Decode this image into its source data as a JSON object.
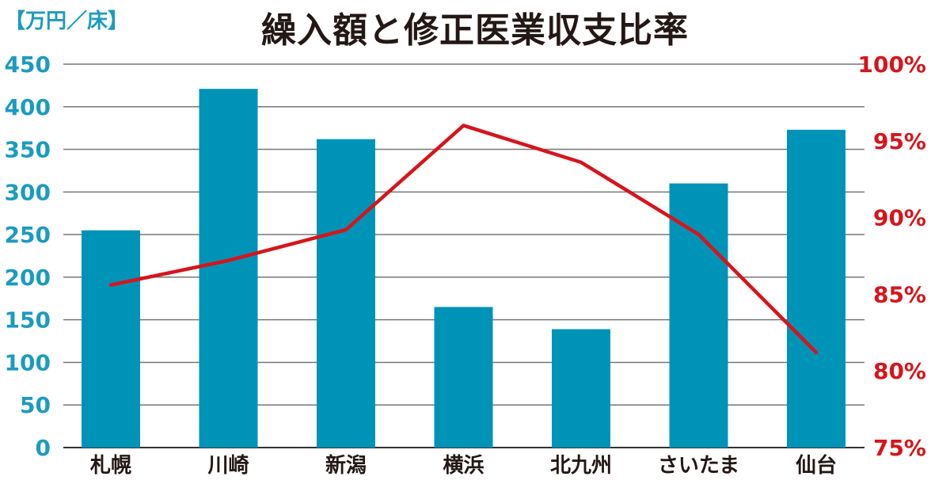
{
  "chart_data": {
    "type": "bar",
    "title": "繰入額と修正医業収支比率",
    "unit_label": "【万円／床】",
    "categories": [
      "札幌",
      "川崎",
      "新潟",
      "横浜",
      "北九州",
      "さいたま",
      "仙台"
    ],
    "series": [
      {
        "values": [
          255,
          421,
          362,
          165,
          139,
          310,
          373
        ],
        "color": "#0093b8",
        "axis": "left"
      },
      {
        "type": "line",
        "values": [
          85.6,
          87.2,
          89.2,
          96.0,
          93.6,
          88.9,
          81.2
        ],
        "color": "#d7141a",
        "axis": "right"
      }
    ],
    "y_left": {
      "ylim": [
        0,
        450
      ],
      "ticks": [
        "0",
        "50",
        "100",
        "150",
        "200",
        "250",
        "300",
        "350",
        "400",
        "450"
      ]
    },
    "y_right": {
      "ylim": [
        75,
        100
      ],
      "ticks": [
        "75%",
        "80%",
        "85%",
        "90%",
        "95%",
        "100%"
      ]
    },
    "grid": true
  }
}
